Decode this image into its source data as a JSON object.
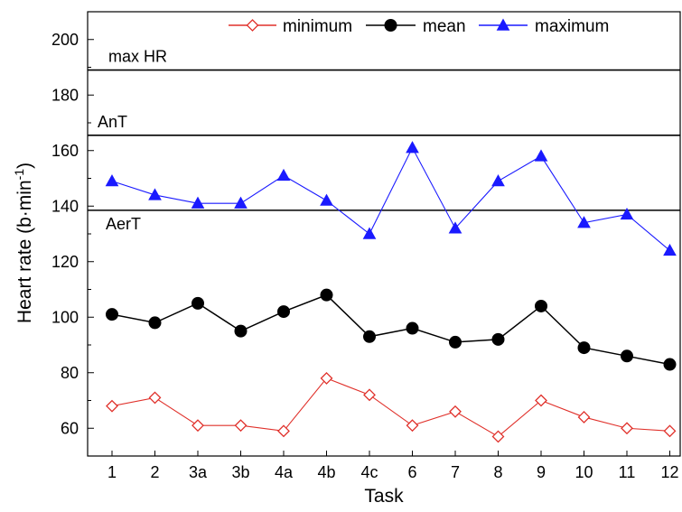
{
  "chart_data": {
    "type": "line",
    "categories": [
      "1",
      "2",
      "3a",
      "3b",
      "4a",
      "4b",
      "4c",
      "6",
      "7",
      "8",
      "9",
      "10",
      "11",
      "12"
    ],
    "series": [
      {
        "name": "minimum",
        "color": "#e0302a",
        "marker": "diamond-open",
        "values": [
          68,
          71,
          61,
          61,
          59,
          78,
          72,
          61,
          66,
          57,
          70,
          64,
          60,
          59
        ]
      },
      {
        "name": "mean",
        "color": "#000000",
        "marker": "circle-filled",
        "values": [
          101,
          98,
          105,
          95,
          102,
          108,
          93,
          96,
          91,
          92,
          104,
          89,
          86,
          83
        ]
      },
      {
        "name": "maximum",
        "color": "#1a1aff",
        "marker": "triangle-filled",
        "values": [
          149,
          144,
          141,
          141,
          151,
          142,
          130,
          161,
          132,
          149,
          158,
          134,
          137,
          124
        ]
      }
    ],
    "reference_lines": [
      {
        "label": "max HR",
        "value": 189
      },
      {
        "label": "AnT",
        "value": 165.5
      },
      {
        "label": "AerT",
        "value": 138.5
      }
    ],
    "xlabel": "Task",
    "ylabel": "Heart rate (b·min",
    "ylabel_superscript": "-1",
    "ylabel_suffix": ")",
    "ylim": [
      50,
      210
    ],
    "yticks": [
      60,
      80,
      100,
      120,
      140,
      160,
      180,
      200
    ],
    "legend_position": "top"
  }
}
